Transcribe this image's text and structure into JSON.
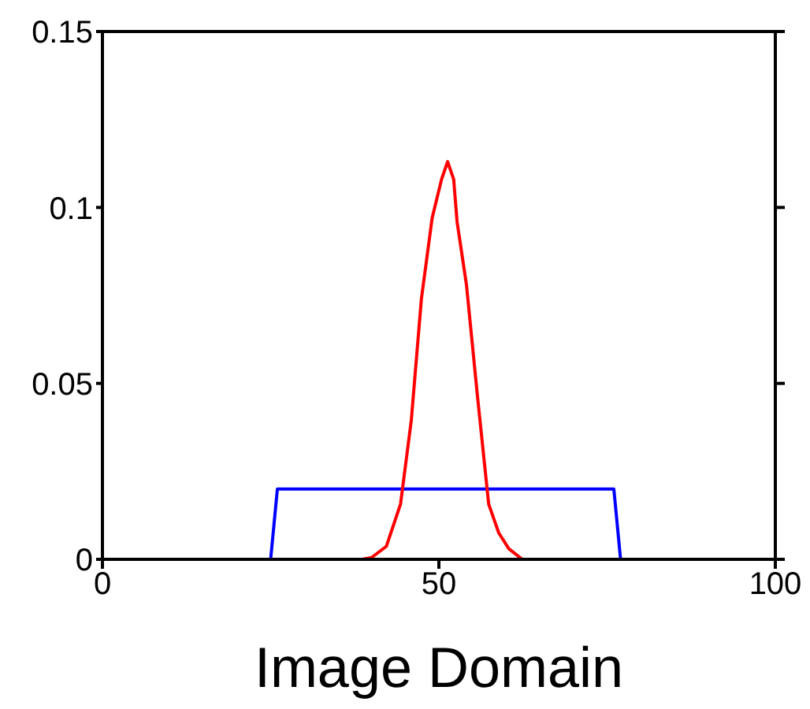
{
  "chart_data": {
    "type": "line",
    "xlabel": "Image Domain",
    "xlim": [
      0,
      100
    ],
    "xticks": [
      0,
      50,
      100
    ],
    "ylim": [
      0,
      0.15
    ],
    "yticks": [
      0,
      0.05,
      0.1,
      0.15
    ],
    "grid": false,
    "marker": "none",
    "line_style": "solid",
    "series": [
      {
        "color": "#0000ff",
        "x": [
          0,
          25,
          26,
          76,
          77,
          100
        ],
        "values": [
          0,
          0,
          0.02,
          0.02,
          0,
          0
        ]
      },
      {
        "color": "#ff0000",
        "x": [
          0,
          38.6,
          40,
          42.2,
          44.3,
          45.9,
          47.4,
          49,
          50.4,
          51.3,
          52.2,
          52.7,
          54.1,
          55.7,
          57.4,
          58.9,
          60.4,
          62.4,
          100
        ],
        "values": [
          0,
          0,
          0.0005,
          0.0037,
          0.0157,
          0.0395,
          0.074,
          0.097,
          0.108,
          0.113,
          0.108,
          0.096,
          0.078,
          0.047,
          0.0157,
          0.0075,
          0.003,
          0,
          0
        ]
      }
    ]
  }
}
